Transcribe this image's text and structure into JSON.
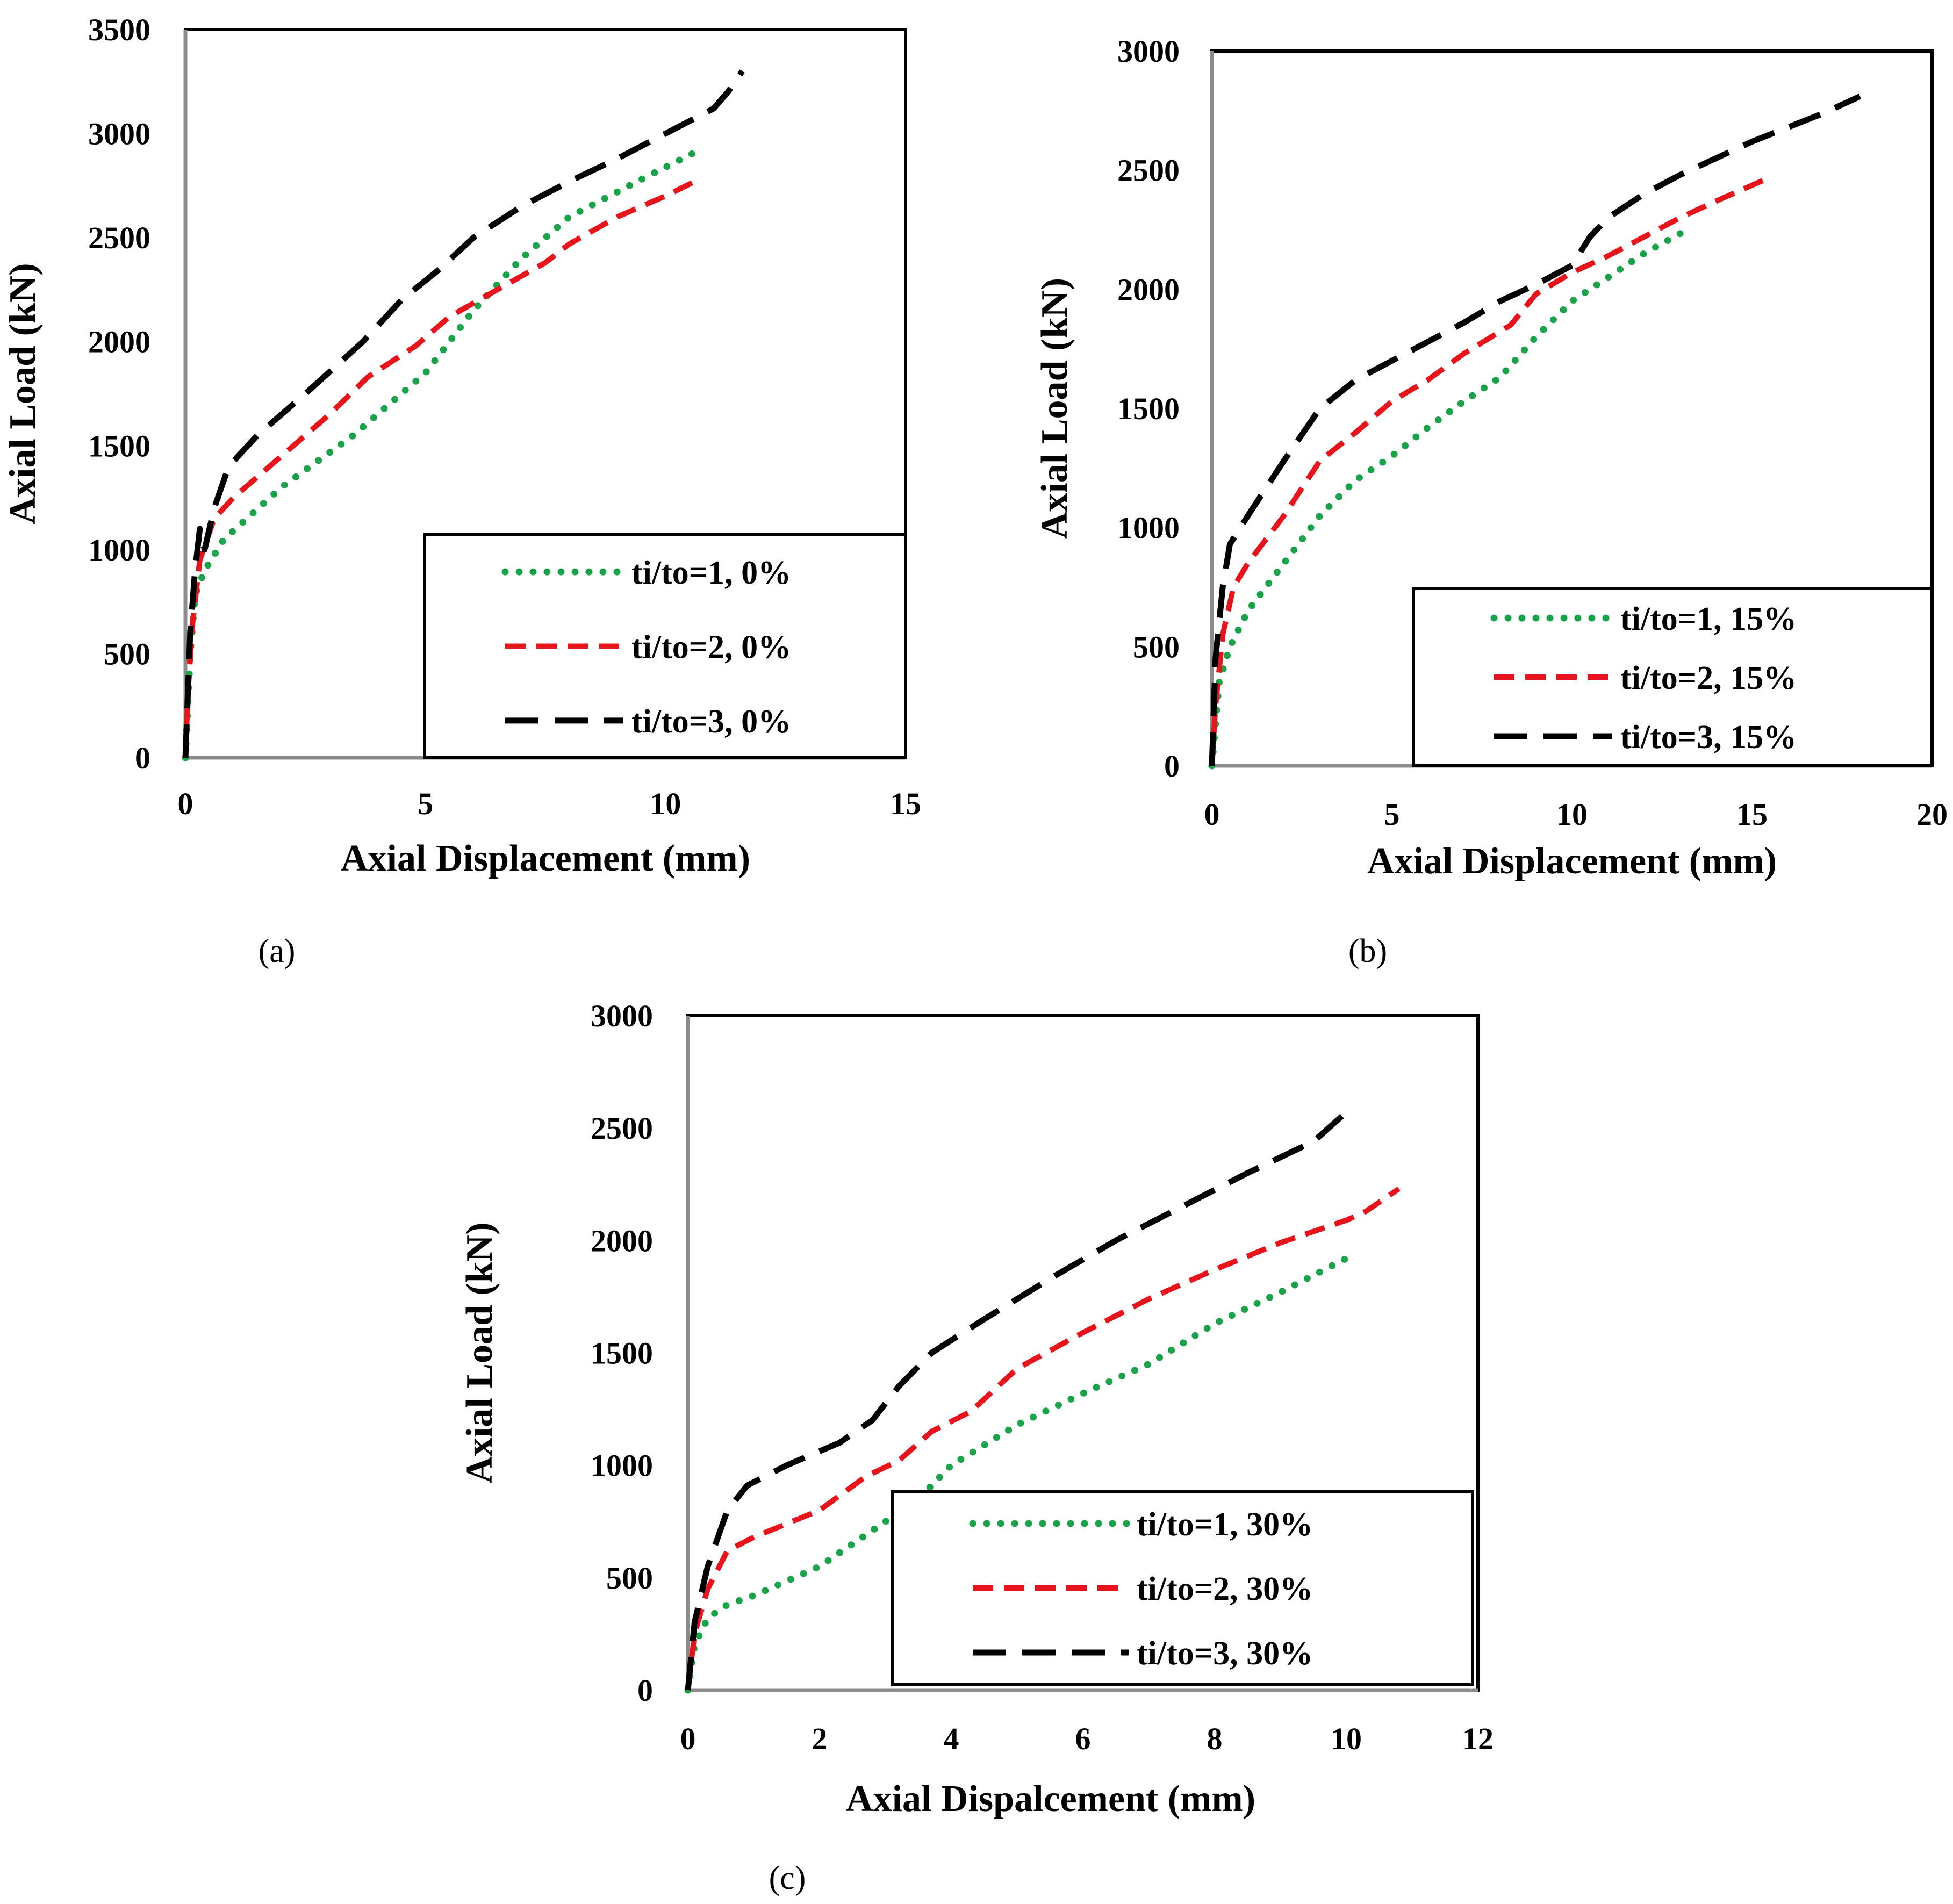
{
  "colors": {
    "green": "#1aa34a",
    "red": "#e8141c",
    "black": "#000000"
  },
  "chart_data": [
    {
      "type": "line",
      "panel_label": "(a)",
      "xlabel": "Axial Displacement (mm)",
      "ylabel": "Axial Load (kN)",
      "xlim": [
        0,
        15
      ],
      "ylim": [
        0,
        3500
      ],
      "xticks": [
        "0",
        "5",
        "10",
        "15"
      ],
      "yticks": [
        "0",
        "500",
        "1000",
        "1500",
        "2000",
        "2500",
        "3000",
        "3500"
      ],
      "legend_position": "bottom-right",
      "series": [
        {
          "name": "ti/to=1, 0%",
          "style": "dotted",
          "color": "green",
          "x": [
            0,
            0.1,
            0.2,
            0.4,
            0.8,
            2,
            3.5,
            5,
            6,
            7,
            8,
            9.5,
            10.7
          ],
          "y": [
            0,
            500,
            780,
            900,
            1050,
            1300,
            1550,
            1850,
            2150,
            2400,
            2600,
            2780,
            2920
          ]
        },
        {
          "name": "ti/to=2, 0%",
          "style": "dashed",
          "color": "red",
          "x": [
            0,
            0.05,
            0.15,
            0.3,
            0.6,
            1,
            2,
            3,
            3.8,
            4.8,
            5.5,
            6.5,
            7.5,
            8,
            9,
            10,
            10.7
          ],
          "y": [
            0,
            300,
            650,
            950,
            1150,
            1250,
            1450,
            1650,
            1830,
            1980,
            2120,
            2250,
            2380,
            2470,
            2600,
            2700,
            2780
          ]
        },
        {
          "name": "ti/to=3, 0%",
          "style": "longdash",
          "color": "black",
          "x": [
            0,
            0.1,
            0.2,
            0.3,
            0.4,
            0.6,
            0.9,
            1.5,
            2.5,
            3.7,
            4.5,
            5.3,
            6,
            7,
            8,
            9,
            10,
            10.5,
            11,
            11.3,
            11.6
          ],
          "y": [
            0,
            600,
            900,
            1100,
            1000,
            1200,
            1400,
            1550,
            1750,
            2000,
            2200,
            2350,
            2500,
            2650,
            2770,
            2880,
            3000,
            3060,
            3120,
            3200,
            3300
          ]
        }
      ]
    },
    {
      "type": "line",
      "panel_label": "(b)",
      "xlabel": "Axial Displacement (mm)",
      "ylabel": "Axial Load (kN)",
      "xlim": [
        0,
        20
      ],
      "ylim": [
        0,
        3000
      ],
      "xticks": [
        "0",
        "5",
        "10",
        "15",
        "20"
      ],
      "yticks": [
        "0",
        "500",
        "1000",
        "1500",
        "2000",
        "2500",
        "3000"
      ],
      "legend_position": "bottom-right",
      "series": [
        {
          "name": "ti/to=1, 15%",
          "style": "dotted",
          "color": "green",
          "x": [
            0,
            0.2,
            0.5,
            1,
            2,
            3,
            4,
            5,
            6,
            7,
            8,
            9,
            10,
            11,
            12,
            13.2
          ],
          "y": [
            0,
            350,
            500,
            650,
            850,
            1050,
            1200,
            1300,
            1420,
            1530,
            1630,
            1800,
            1950,
            2050,
            2150,
            2250
          ]
        },
        {
          "name": "ti/to=2, 15%",
          "style": "dashed",
          "color": "red",
          "x": [
            0,
            0.1,
            0.3,
            0.6,
            1,
            2,
            3,
            4,
            5,
            6,
            7,
            8.3,
            9,
            10,
            11,
            12,
            13,
            14,
            15.5
          ],
          "y": [
            0,
            250,
            550,
            750,
            850,
            1050,
            1280,
            1400,
            1530,
            1620,
            1730,
            1850,
            1980,
            2070,
            2140,
            2220,
            2300,
            2370,
            2470
          ]
        },
        {
          "name": "ti/to=3, 15%",
          "style": "longdash",
          "color": "black",
          "x": [
            0,
            0.1,
            0.3,
            0.5,
            1,
            2,
            3,
            4,
            5,
            6,
            7,
            8,
            9,
            10,
            10.5,
            11,
            12,
            13,
            14,
            15,
            16,
            17,
            18
          ],
          "y": [
            0,
            450,
            750,
            930,
            1050,
            1280,
            1500,
            1620,
            1700,
            1780,
            1860,
            1950,
            2020,
            2100,
            2220,
            2300,
            2400,
            2480,
            2550,
            2620,
            2680,
            2740,
            2810
          ]
        }
      ]
    },
    {
      "type": "line",
      "panel_label": "(c)",
      "xlabel": "Axial Dispalcement (mm)",
      "ylabel": "Axial Load (kN)",
      "xlim": [
        0,
        12
      ],
      "ylim": [
        0,
        3000
      ],
      "xticks": [
        "0",
        "2",
        "4",
        "6",
        "8",
        "10",
        "12"
      ],
      "yticks": [
        "0",
        "500",
        "1000",
        "1500",
        "2000",
        "2500",
        "3000"
      ],
      "legend_position": "bottom-right",
      "series": [
        {
          "name": "ti/to=1, 30%",
          "style": "dotted",
          "color": "green",
          "x": [
            0,
            0.1,
            0.3,
            0.6,
            1,
            2,
            3,
            3.5,
            4,
            5,
            6,
            7,
            8,
            9,
            10
          ],
          "y": [
            0,
            200,
            320,
            380,
            420,
            550,
            750,
            850,
            1000,
            1180,
            1320,
            1450,
            1630,
            1770,
            1920
          ]
        },
        {
          "name": "ti/to=2, 30%",
          "style": "dashed",
          "color": "red",
          "x": [
            0,
            0.1,
            0.3,
            0.6,
            1,
            2,
            2.7,
            3.2,
            3.7,
            4.3,
            5,
            6,
            7,
            8,
            9,
            10,
            10.3,
            10.8
          ],
          "y": [
            0,
            250,
            450,
            620,
            680,
            800,
            950,
            1020,
            1150,
            1240,
            1430,
            1590,
            1740,
            1870,
            1990,
            2090,
            2130,
            2230
          ]
        },
        {
          "name": "ti/to=3, 30%",
          "style": "longdash",
          "color": "black",
          "x": [
            0,
            0.1,
            0.3,
            0.6,
            0.9,
            1.5,
            2.3,
            2.8,
            3.2,
            3.7,
            4.5,
            5.5,
            6.5,
            7.5,
            8.5,
            9.5,
            10
          ],
          "y": [
            0,
            300,
            550,
            800,
            910,
            1000,
            1100,
            1200,
            1350,
            1500,
            1650,
            1830,
            2000,
            2150,
            2300,
            2440,
            2570
          ]
        }
      ]
    }
  ]
}
